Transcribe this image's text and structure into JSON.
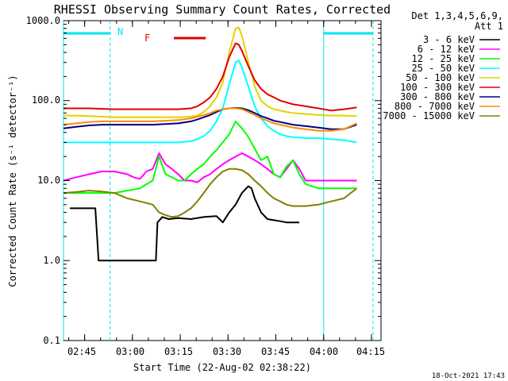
{
  "chart_data": {
    "type": "line",
    "title": "RHESSI Observing Summary Count Rates, Corrected",
    "xlabel": "Start Time (22-Aug-02 02:38:22)",
    "ylabel": "Corrected Count Rate (s⁻¹ detector⁻¹)",
    "x_unit": "minutes UT (22-Aug-02)",
    "xlim": [
      "02:38:22",
      "04:18:00"
    ],
    "ylim": [
      0.1,
      1000
    ],
    "yscale": "log",
    "grid": false,
    "legend_position": "top-right (outside plot)",
    "legend_header": [
      "Det 1,3,4,5,6,9,",
      "Att 1"
    ],
    "x_ticks": [
      "02:45",
      "03:00",
      "03:15",
      "03:30",
      "03:45",
      "04:00",
      "04:15"
    ],
    "y_ticks": [
      "0.1",
      "1.0",
      "10.0",
      "100.0",
      "1000.0"
    ],
    "annotations": {
      "night_label": "N",
      "flare_label": "F",
      "night_color": "#00e5ee",
      "flare_color": "#e00000",
      "night_intervals": [
        [
          "02:38:22",
          "02:53:00"
        ],
        [
          "04:00:00",
          "04:15:30"
        ]
      ],
      "flare_interval": [
        "03:13:00",
        "03:23:00"
      ],
      "night_boundaries": [
        "02:38:22",
        "02:53:00",
        "04:00:00",
        "04:15:30"
      ]
    },
    "series": [
      {
        "name": "3 - 6 keV",
        "color": "#000000",
        "points": [
          [
            2.0,
            4.5
          ],
          [
            4,
            4.5
          ],
          [
            6,
            4.5
          ],
          [
            8,
            4.5
          ],
          [
            10,
            4.5
          ],
          [
            11,
            1.0
          ],
          [
            14,
            1.0
          ],
          [
            17,
            1.0
          ],
          [
            20,
            1.0
          ],
          [
            23,
            1.0
          ],
          [
            26,
            1.0
          ],
          [
            29,
            1.0
          ],
          [
            29.5,
            3.0
          ],
          [
            31,
            3.5
          ],
          [
            33,
            3.3
          ],
          [
            36,
            3.4
          ],
          [
            40,
            3.3
          ],
          [
            44,
            3.5
          ],
          [
            48,
            3.6
          ],
          [
            50,
            3.0
          ],
          [
            52,
            4.0
          ],
          [
            54,
            5.0
          ],
          [
            56,
            7.0
          ],
          [
            58,
            8.5
          ],
          [
            59,
            8.0
          ],
          [
            60,
            6.0
          ],
          [
            62,
            4.0
          ],
          [
            64,
            3.3
          ],
          [
            66,
            3.2
          ],
          [
            68,
            3.1
          ],
          [
            70,
            3.0
          ],
          [
            72,
            3.0
          ],
          [
            74,
            3.0
          ]
        ]
      },
      {
        "name": "6 - 12 keV",
        "color": "#ff00ff",
        "points": [
          [
            0,
            10
          ],
          [
            4,
            11
          ],
          [
            8,
            12
          ],
          [
            12,
            13
          ],
          [
            16,
            13
          ],
          [
            20,
            12
          ],
          [
            22,
            11
          ],
          [
            24,
            10.5
          ],
          [
            26,
            13
          ],
          [
            28,
            14
          ],
          [
            30,
            22
          ],
          [
            32,
            16
          ],
          [
            34,
            14
          ],
          [
            36,
            12
          ],
          [
            38,
            10
          ],
          [
            40,
            10
          ],
          [
            42,
            9.5
          ],
          [
            44,
            11
          ],
          [
            46,
            12
          ],
          [
            48,
            14
          ],
          [
            50,
            16
          ],
          [
            52,
            18
          ],
          [
            54,
            20
          ],
          [
            56,
            22
          ],
          [
            58,
            20
          ],
          [
            60,
            18
          ],
          [
            62,
            16
          ],
          [
            64,
            14
          ],
          [
            66,
            12
          ],
          [
            68,
            11
          ],
          [
            70,
            14
          ],
          [
            72,
            18
          ],
          [
            74,
            14
          ],
          [
            76,
            10
          ],
          [
            80,
            10
          ],
          [
            84,
            10
          ],
          [
            88,
            10
          ],
          [
            92,
            10
          ]
        ]
      },
      {
        "name": "12 - 25 keV",
        "color": "#00ff00",
        "points": [
          [
            0,
            7
          ],
          [
            4,
            7
          ],
          [
            8,
            7
          ],
          [
            12,
            7
          ],
          [
            16,
            7
          ],
          [
            20,
            7.5
          ],
          [
            24,
            8
          ],
          [
            26,
            9
          ],
          [
            28,
            10
          ],
          [
            30,
            20
          ],
          [
            32,
            12
          ],
          [
            34,
            11
          ],
          [
            36,
            10
          ],
          [
            38,
            10
          ],
          [
            40,
            12
          ],
          [
            42,
            14
          ],
          [
            44,
            16
          ],
          [
            46,
            20
          ],
          [
            48,
            24
          ],
          [
            50,
            30
          ],
          [
            52,
            38
          ],
          [
            54,
            55
          ],
          [
            56,
            45
          ],
          [
            58,
            35
          ],
          [
            60,
            25
          ],
          [
            62,
            18
          ],
          [
            64,
            20
          ],
          [
            66,
            12
          ],
          [
            68,
            11
          ],
          [
            70,
            15
          ],
          [
            72,
            18
          ],
          [
            74,
            12
          ],
          [
            76,
            9
          ],
          [
            80,
            8
          ],
          [
            84,
            8
          ],
          [
            88,
            8
          ],
          [
            92,
            8
          ]
        ]
      },
      {
        "name": "25 - 50 keV",
        "color": "#00ffff",
        "points": [
          [
            0,
            30
          ],
          [
            4,
            30
          ],
          [
            8,
            30
          ],
          [
            12,
            30
          ],
          [
            16,
            30
          ],
          [
            20,
            30
          ],
          [
            24,
            30
          ],
          [
            28,
            30
          ],
          [
            32,
            30
          ],
          [
            36,
            30
          ],
          [
            40,
            31
          ],
          [
            42,
            33
          ],
          [
            44,
            36
          ],
          [
            46,
            42
          ],
          [
            48,
            55
          ],
          [
            50,
            80
          ],
          [
            52,
            160
          ],
          [
            54,
            300
          ],
          [
            55,
            320
          ],
          [
            56,
            260
          ],
          [
            58,
            150
          ],
          [
            60,
            85
          ],
          [
            62,
            60
          ],
          [
            64,
            48
          ],
          [
            66,
            42
          ],
          [
            68,
            38
          ],
          [
            70,
            36
          ],
          [
            72,
            35
          ],
          [
            76,
            34
          ],
          [
            80,
            34
          ],
          [
            84,
            33
          ],
          [
            88,
            32
          ],
          [
            92,
            30
          ]
        ]
      },
      {
        "name": "50 - 100 keV",
        "color": "#e5d200",
        "points": [
          [
            0,
            65
          ],
          [
            4,
            65
          ],
          [
            8,
            64
          ],
          [
            12,
            63
          ],
          [
            16,
            62
          ],
          [
            20,
            62
          ],
          [
            24,
            62
          ],
          [
            28,
            62
          ],
          [
            32,
            62
          ],
          [
            36,
            62
          ],
          [
            40,
            63
          ],
          [
            42,
            65
          ],
          [
            44,
            72
          ],
          [
            46,
            85
          ],
          [
            48,
            110
          ],
          [
            50,
            170
          ],
          [
            52,
            400
          ],
          [
            54,
            800
          ],
          [
            55,
            820
          ],
          [
            56,
            650
          ],
          [
            58,
            300
          ],
          [
            60,
            150
          ],
          [
            62,
            100
          ],
          [
            64,
            85
          ],
          [
            66,
            78
          ],
          [
            68,
            75
          ],
          [
            70,
            72
          ],
          [
            72,
            70
          ],
          [
            76,
            68
          ],
          [
            80,
            66
          ],
          [
            84,
            65
          ],
          [
            88,
            65
          ],
          [
            92,
            64
          ]
        ]
      },
      {
        "name": "100 - 300 keV",
        "color": "#e00000",
        "points": [
          [
            0,
            80
          ],
          [
            4,
            80
          ],
          [
            8,
            80
          ],
          [
            12,
            79
          ],
          [
            16,
            78
          ],
          [
            20,
            78
          ],
          [
            24,
            78
          ],
          [
            28,
            78
          ],
          [
            32,
            78
          ],
          [
            36,
            78
          ],
          [
            40,
            80
          ],
          [
            42,
            85
          ],
          [
            44,
            95
          ],
          [
            46,
            110
          ],
          [
            48,
            140
          ],
          [
            50,
            200
          ],
          [
            52,
            350
          ],
          [
            54,
            520
          ],
          [
            55,
            500
          ],
          [
            56,
            420
          ],
          [
            58,
            270
          ],
          [
            60,
            180
          ],
          [
            62,
            140
          ],
          [
            64,
            120
          ],
          [
            66,
            110
          ],
          [
            68,
            100
          ],
          [
            70,
            95
          ],
          [
            72,
            90
          ],
          [
            76,
            85
          ],
          [
            80,
            80
          ],
          [
            84,
            75
          ],
          [
            88,
            78
          ],
          [
            92,
            82
          ]
        ]
      },
      {
        "name": "300 - 800 keV",
        "color": "#000080",
        "points": [
          [
            0,
            45
          ],
          [
            4,
            47
          ],
          [
            8,
            49
          ],
          [
            12,
            50
          ],
          [
            16,
            50
          ],
          [
            20,
            50
          ],
          [
            24,
            50
          ],
          [
            28,
            50
          ],
          [
            32,
            51
          ],
          [
            36,
            52
          ],
          [
            40,
            55
          ],
          [
            42,
            58
          ],
          [
            44,
            62
          ],
          [
            46,
            66
          ],
          [
            48,
            72
          ],
          [
            50,
            78
          ],
          [
            52,
            80
          ],
          [
            54,
            81
          ],
          [
            56,
            80
          ],
          [
            58,
            76
          ],
          [
            60,
            70
          ],
          [
            62,
            64
          ],
          [
            64,
            60
          ],
          [
            66,
            56
          ],
          [
            68,
            54
          ],
          [
            70,
            52
          ],
          [
            72,
            50
          ],
          [
            76,
            48
          ],
          [
            80,
            46
          ],
          [
            84,
            44
          ],
          [
            88,
            44
          ],
          [
            92,
            50
          ]
        ]
      },
      {
        "name": "800 - 7000 keV",
        "color": "#ff8c00",
        "points": [
          [
            0,
            50
          ],
          [
            4,
            52
          ],
          [
            8,
            54
          ],
          [
            12,
            55
          ],
          [
            16,
            55
          ],
          [
            20,
            55
          ],
          [
            24,
            55
          ],
          [
            28,
            55
          ],
          [
            32,
            56
          ],
          [
            36,
            57
          ],
          [
            40,
            60
          ],
          [
            42,
            63
          ],
          [
            44,
            66
          ],
          [
            46,
            70
          ],
          [
            48,
            75
          ],
          [
            50,
            78
          ],
          [
            52,
            80
          ],
          [
            54,
            80
          ],
          [
            56,
            78
          ],
          [
            58,
            72
          ],
          [
            60,
            66
          ],
          [
            62,
            60
          ],
          [
            64,
            56
          ],
          [
            66,
            52
          ],
          [
            68,
            50
          ],
          [
            70,
            48
          ],
          [
            72,
            46
          ],
          [
            76,
            44
          ],
          [
            80,
            42
          ],
          [
            84,
            42
          ],
          [
            88,
            44
          ],
          [
            92,
            52
          ]
        ]
      },
      {
        "name": "7000 - 15000 keV",
        "color": "#808000",
        "points": [
          [
            0,
            7
          ],
          [
            4,
            7.2
          ],
          [
            8,
            7.5
          ],
          [
            12,
            7.3
          ],
          [
            16,
            7
          ],
          [
            20,
            6
          ],
          [
            24,
            5.5
          ],
          [
            28,
            5.0
          ],
          [
            30,
            4.0
          ],
          [
            32,
            3.7
          ],
          [
            34,
            3.5
          ],
          [
            36,
            3.6
          ],
          [
            38,
            4.0
          ],
          [
            40,
            4.5
          ],
          [
            42,
            5.5
          ],
          [
            44,
            7
          ],
          [
            46,
            9
          ],
          [
            48,
            11
          ],
          [
            50,
            13
          ],
          [
            52,
            14
          ],
          [
            54,
            14
          ],
          [
            56,
            13.5
          ],
          [
            58,
            12
          ],
          [
            60,
            10
          ],
          [
            62,
            8.5
          ],
          [
            64,
            7
          ],
          [
            66,
            6
          ],
          [
            68,
            5.5
          ],
          [
            70,
            5
          ],
          [
            72,
            4.8
          ],
          [
            76,
            4.8
          ],
          [
            80,
            5
          ],
          [
            84,
            5.5
          ],
          [
            88,
            6
          ],
          [
            92,
            8
          ]
        ]
      }
    ]
  },
  "footer": {
    "date_stamp": "18-Oct-2021 17:43"
  }
}
